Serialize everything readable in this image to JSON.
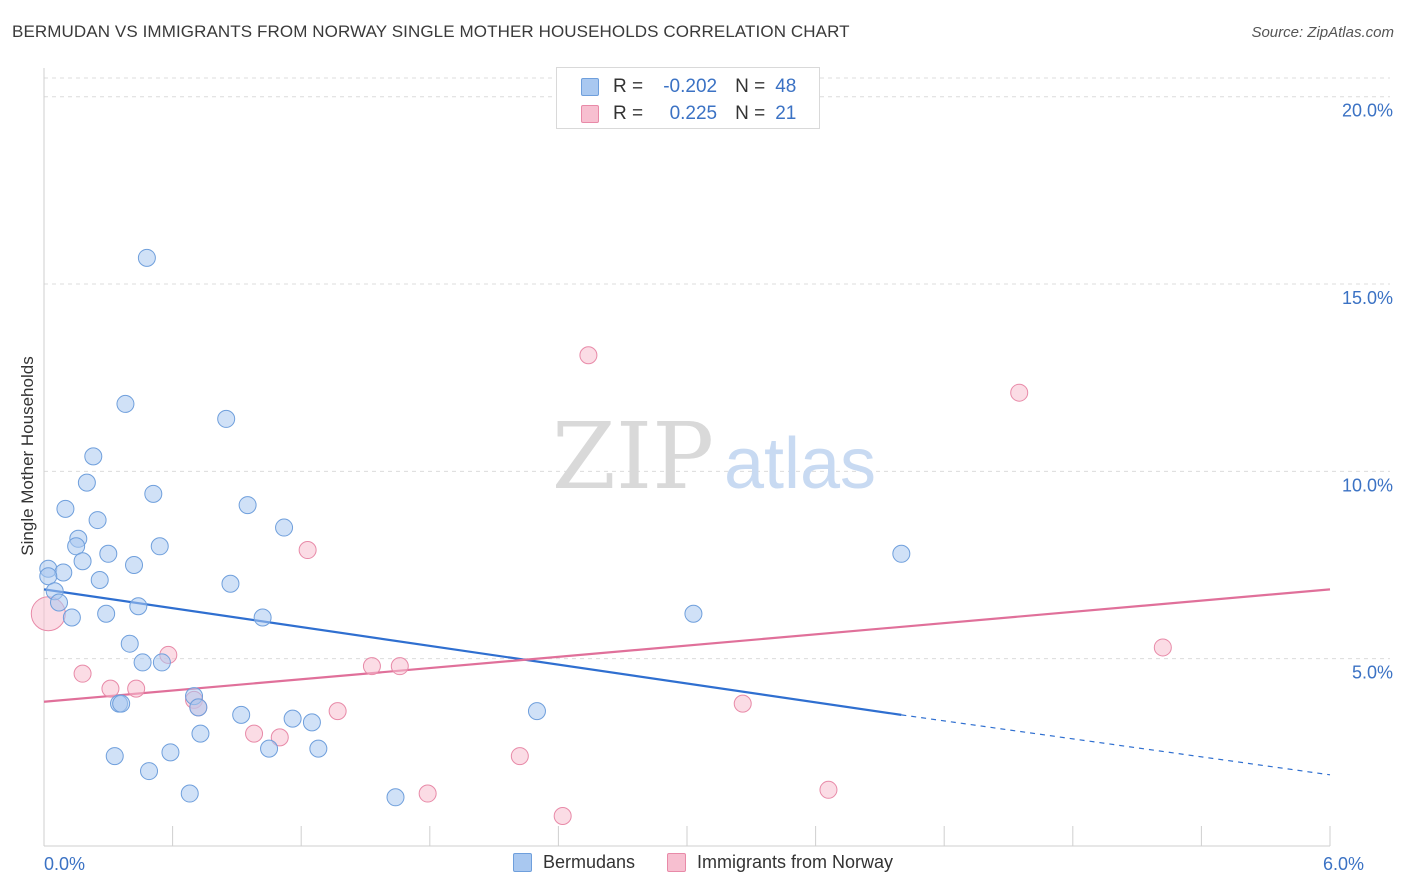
{
  "header": {
    "title": "BERMUDAN VS IMMIGRANTS FROM NORWAY SINGLE MOTHER HOUSEHOLDS CORRELATION CHART",
    "source": "Source: ZipAtlas.com"
  },
  "watermark": {
    "zip": "ZIP",
    "atlas": "atlas"
  },
  "legend_top": {
    "rows": [
      {
        "r_label": "R =",
        "r_value": "-0.202",
        "n_label": "N =",
        "n_value": "48",
        "color": "#a9c8f0",
        "border": "#6f9fdc"
      },
      {
        "r_label": "R =",
        "r_value": "0.225",
        "n_label": "N =",
        "n_value": "21",
        "color": "#f7bfd0",
        "border": "#e88aa8"
      }
    ]
  },
  "legend_bottom": [
    {
      "label": "Bermudans",
      "color": "#a9c8f0",
      "border": "#6f9fdc"
    },
    {
      "label": "Immigrants from Norway",
      "color": "#f7bfd0",
      "border": "#e88aa8"
    }
  ],
  "chart_data": {
    "type": "scatter",
    "ylabel": "Single Mother Households",
    "xlim": [
      0,
      6
    ],
    "ylim": [
      0,
      20.5
    ],
    "x_tick_labels": [
      {
        "value": 0,
        "label": "0.0%"
      },
      {
        "value": 6,
        "label": "6.0%"
      }
    ],
    "x_minor_ticks": [
      0.6,
      1.2,
      1.8,
      2.4,
      3.0,
      3.6,
      4.2,
      4.8,
      5.4,
      6.0
    ],
    "y_ticks": [
      {
        "value": 5,
        "label": "5.0%"
      },
      {
        "value": 10,
        "label": "10.0%"
      },
      {
        "value": 15,
        "label": "15.0%"
      },
      {
        "value": 20,
        "label": "20.0%"
      }
    ],
    "grid": true,
    "series": [
      {
        "name": "Bermudans",
        "color": "#a9c8f0",
        "stroke": "#6f9fdc",
        "line_color": "#2f6fd0",
        "points": [
          [
            0.48,
            15.7
          ],
          [
            0.38,
            11.8
          ],
          [
            0.85,
            11.4
          ],
          [
            0.23,
            10.4
          ],
          [
            0.2,
            9.7
          ],
          [
            0.51,
            9.4
          ],
          [
            0.1,
            9.0
          ],
          [
            0.95,
            9.1
          ],
          [
            0.25,
            8.7
          ],
          [
            1.12,
            8.5
          ],
          [
            0.16,
            8.2
          ],
          [
            0.15,
            8.0
          ],
          [
            0.54,
            8.0
          ],
          [
            0.3,
            7.8
          ],
          [
            0.18,
            7.6
          ],
          [
            0.42,
            7.5
          ],
          [
            0.02,
            7.4
          ],
          [
            0.09,
            7.3
          ],
          [
            0.02,
            7.2
          ],
          [
            0.26,
            7.1
          ],
          [
            0.87,
            7.0
          ],
          [
            0.05,
            6.8
          ],
          [
            0.07,
            6.5
          ],
          [
            0.44,
            6.4
          ],
          [
            0.29,
            6.2
          ],
          [
            0.13,
            6.1
          ],
          [
            1.02,
            6.1
          ],
          [
            3.03,
            6.2
          ],
          [
            4.0,
            7.8
          ],
          [
            0.4,
            5.4
          ],
          [
            0.46,
            4.9
          ],
          [
            0.55,
            4.9
          ],
          [
            0.7,
            4.0
          ],
          [
            0.72,
            3.7
          ],
          [
            0.35,
            3.8
          ],
          [
            0.36,
            3.8
          ],
          [
            0.92,
            3.5
          ],
          [
            1.16,
            3.4
          ],
          [
            1.25,
            3.3
          ],
          [
            0.73,
            3.0
          ],
          [
            2.3,
            3.6
          ],
          [
            1.05,
            2.6
          ],
          [
            1.28,
            2.6
          ],
          [
            0.59,
            2.5
          ],
          [
            0.33,
            2.4
          ],
          [
            0.49,
            2.0
          ],
          [
            0.68,
            1.4
          ],
          [
            1.64,
            1.3
          ]
        ],
        "trend": {
          "x": [
            0.0,
            4.0
          ],
          "y": [
            6.85,
            3.5
          ],
          "dashed_to": [
            6.0,
            1.9
          ]
        }
      },
      {
        "name": "Immigrants from Norway",
        "color": "#f7bfd0",
        "stroke": "#e88aa8",
        "line_color": "#e0709a",
        "points": [
          [
            0.02,
            6.2
          ],
          [
            2.54,
            13.1
          ],
          [
            4.55,
            12.1
          ],
          [
            1.23,
            7.9
          ],
          [
            5.22,
            5.3
          ],
          [
            0.58,
            5.1
          ],
          [
            1.53,
            4.8
          ],
          [
            1.66,
            4.8
          ],
          [
            0.18,
            4.6
          ],
          [
            0.31,
            4.2
          ],
          [
            0.43,
            4.2
          ],
          [
            0.7,
            3.9
          ],
          [
            0.72,
            3.7
          ],
          [
            1.37,
            3.6
          ],
          [
            3.26,
            3.8
          ],
          [
            0.98,
            3.0
          ],
          [
            1.1,
            2.9
          ],
          [
            2.22,
            2.4
          ],
          [
            1.79,
            1.4
          ],
          [
            3.66,
            1.5
          ],
          [
            2.42,
            0.8
          ]
        ],
        "trend": {
          "x": [
            0.0,
            6.0
          ],
          "y": [
            3.85,
            6.85
          ]
        }
      }
    ]
  }
}
